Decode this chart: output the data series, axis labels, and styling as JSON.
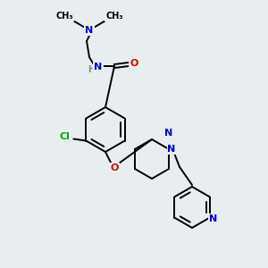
{
  "background_color": "#e8edf0",
  "bond_color": "#000000",
  "atom_colors": {
    "N": "#0000cc",
    "O": "#dd0000",
    "Cl": "#00aa00",
    "H": "#888888",
    "C": "#000000"
  },
  "bg": "#e8edf0"
}
